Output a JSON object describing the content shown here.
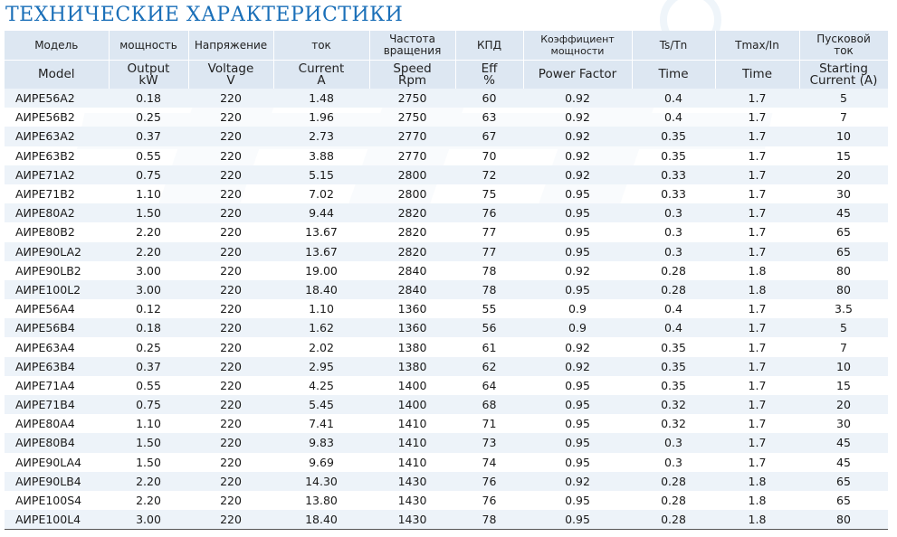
{
  "title": "ТЕХНИЧЕСКИЕ ХАРАКТЕРИСТИКИ",
  "colors": {
    "title": "#1a6fb8",
    "header_bg": "#dde7f2",
    "row_stripe": "#edf3f9"
  },
  "header_ru": {
    "model": "Модель",
    "power": "мощность",
    "voltage": "Напряжение",
    "current": "ток",
    "speed_1": "Частота",
    "speed_2": "вращения",
    "eff": "КПД",
    "pf_1": "Коэффициент",
    "pf_2": "мощности",
    "ts": "Ts/Tn",
    "tmax": "Tmax/In",
    "start_1": "Пусковой",
    "start_2": "ток"
  },
  "header_en": {
    "model": "Model",
    "power_1": "Output",
    "power_2": "kW",
    "voltage_1": "Voltage",
    "voltage_2": "V",
    "current_1": "Current",
    "current_2": "A",
    "speed_1": "Speed",
    "speed_2": "Rpm",
    "eff_1": "Eff",
    "eff_2": "%",
    "pf": "Power Factor",
    "ts": "Time",
    "tmax": "Time",
    "start_1": "Starting",
    "start_2": "Current (A)"
  },
  "rows": [
    [
      "АИРЕ56А2",
      "0.18",
      "220",
      "1.48",
      "2750",
      "60",
      "0.92",
      "0.4",
      "1.7",
      "5"
    ],
    [
      "АИРЕ56В2",
      "0.25",
      "220",
      "1.96",
      "2750",
      "63",
      "0.92",
      "0.4",
      "1.7",
      "7"
    ],
    [
      "АИРЕ63А2",
      "0.37",
      "220",
      "2.73",
      "2770",
      "67",
      "0.92",
      "0.35",
      "1.7",
      "10"
    ],
    [
      "АИРЕ63В2",
      "0.55",
      "220",
      "3.88",
      "2770",
      "70",
      "0.92",
      "0.35",
      "1.7",
      "15"
    ],
    [
      "АИРЕ71А2",
      "0.75",
      "220",
      "5.15",
      "2800",
      "72",
      "0.92",
      "0.33",
      "1.7",
      "20"
    ],
    [
      "АИРЕ71В2",
      "1.10",
      "220",
      "7.02",
      "2800",
      "75",
      "0.95",
      "0.33",
      "1.7",
      "30"
    ],
    [
      "АИРЕ80А2",
      "1.50",
      "220",
      "9.44",
      "2820",
      "76",
      "0.95",
      "0.3",
      "1.7",
      "45"
    ],
    [
      "АИРЕ80В2",
      "2.20",
      "220",
      "13.67",
      "2820",
      "77",
      "0.95",
      "0.3",
      "1.7",
      "65"
    ],
    [
      "АИРЕ90LA2",
      "2.20",
      "220",
      "13.67",
      "2820",
      "77",
      "0.95",
      "0.3",
      "1.7",
      "65"
    ],
    [
      "АИРЕ90LB2",
      "3.00",
      "220",
      "19.00",
      "2840",
      "78",
      "0.92",
      "0.28",
      "1.8",
      "80"
    ],
    [
      "АИРЕ100L2",
      "3.00",
      "220",
      "18.40",
      "2840",
      "78",
      "0.95",
      "0.28",
      "1.8",
      "80"
    ],
    [
      "АИРЕ56А4",
      "0.12",
      "220",
      "1.10",
      "1360",
      "55",
      "0.9",
      "0.4",
      "1.7",
      "3.5"
    ],
    [
      "АИРЕ56В4",
      "0.18",
      "220",
      "1.62",
      "1360",
      "56",
      "0.9",
      "0.4",
      "1.7",
      "5"
    ],
    [
      "АИРЕ63А4",
      "0.25",
      "220",
      "2.02",
      "1380",
      "61",
      "0.92",
      "0.35",
      "1.7",
      "7"
    ],
    [
      "АИРЕ63В4",
      "0.37",
      "220",
      "2.95",
      "1380",
      "62",
      "0.92",
      "0.35",
      "1.7",
      "10"
    ],
    [
      "АИРЕ71А4",
      "0.55",
      "220",
      "4.25",
      "1400",
      "64",
      "0.95",
      "0.35",
      "1.7",
      "15"
    ],
    [
      "АИРЕ71В4",
      "0.75",
      "220",
      "5.45",
      "1400",
      "68",
      "0.95",
      "0.32",
      "1.7",
      "20"
    ],
    [
      "АИРЕ80А4",
      "1.10",
      "220",
      "7.41",
      "1410",
      "71",
      "0.95",
      "0.32",
      "1.7",
      "30"
    ],
    [
      "АИРЕ80В4",
      "1.50",
      "220",
      "9.83",
      "1410",
      "73",
      "0.95",
      "0.3",
      "1.7",
      "45"
    ],
    [
      "АИРЕ90LA4",
      "1.50",
      "220",
      "9.69",
      "1410",
      "74",
      "0.95",
      "0.3",
      "1.7",
      "45"
    ],
    [
      "АИРЕ90LB4",
      "2.20",
      "220",
      "14.30",
      "1430",
      "76",
      "0.92",
      "0.28",
      "1.8",
      "65"
    ],
    [
      "АИРЕ100S4",
      "2.20",
      "220",
      "13.80",
      "1430",
      "76",
      "0.95",
      "0.28",
      "1.8",
      "65"
    ],
    [
      "АИРЕ100L4",
      "3.00",
      "220",
      "18.40",
      "1430",
      "78",
      "0.95",
      "0.28",
      "1.8",
      "80"
    ]
  ]
}
